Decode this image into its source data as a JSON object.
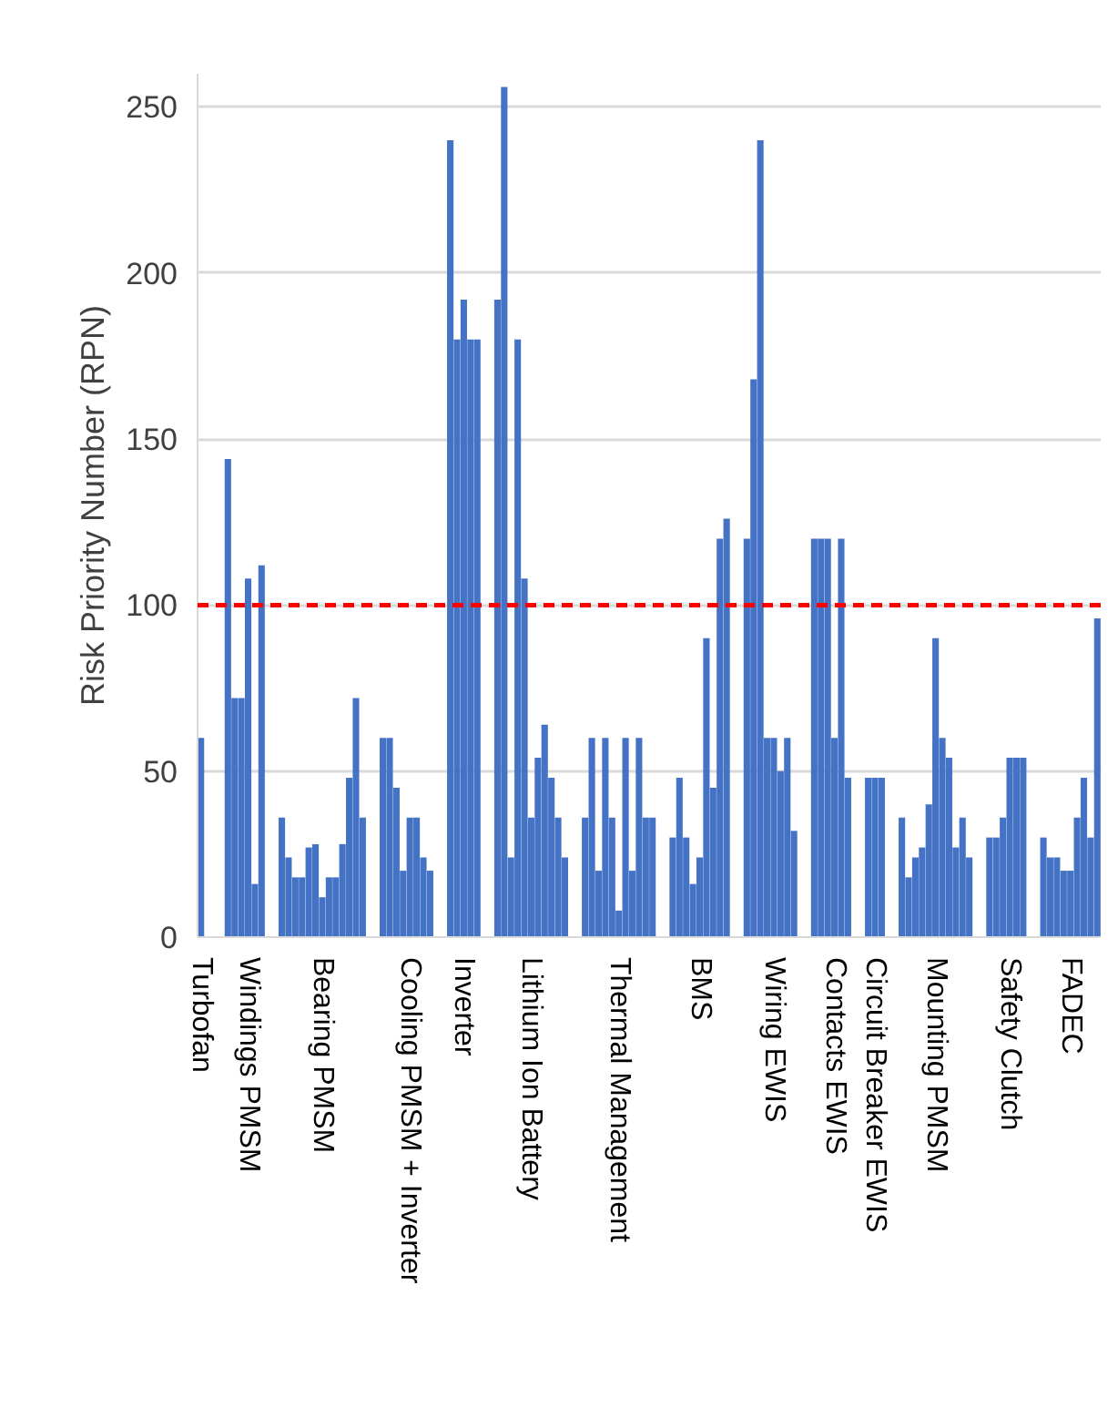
{
  "chart_data": {
    "type": "bar",
    "ylabel": "Risk Priority Number (RPN)",
    "categories": [
      "Turbofan",
      null,
      null,
      null,
      null,
      null,
      null,
      "Windings PMSM",
      null,
      null,
      null,
      null,
      null,
      null,
      null,
      null,
      null,
      null,
      "Bearing PMSM",
      null,
      null,
      null,
      null,
      null,
      null,
      null,
      null,
      null,
      null,
      null,
      null,
      "Cooling PMSM + Inverter",
      null,
      null,
      null,
      null,
      null,
      null,
      null,
      "Inverter",
      null,
      null,
      null,
      null,
      null,
      null,
      null,
      null,
      null,
      "Lithium Ion Battery",
      null,
      null,
      null,
      null,
      null,
      null,
      null,
      null,
      null,
      null,
      null,
      null,
      "Thermal Management",
      null,
      null,
      null,
      null,
      null,
      null,
      null,
      null,
      null,
      null,
      null,
      "BMS",
      null,
      null,
      null,
      null,
      null,
      null,
      null,
      null,
      null,
      null,
      "Wiring EWIS",
      null,
      null,
      null,
      null,
      null,
      null,
      null,
      null,
      "Contacts EWIS",
      null,
      null,
      null,
      null,
      null,
      "Circuit Breaker EWIS",
      null,
      null,
      null,
      null,
      null,
      null,
      null,
      null,
      "Mounting PMSM",
      null,
      null,
      null,
      null,
      null,
      null,
      null,
      null,
      null,
      null,
      "Safety Clutch",
      null,
      null,
      null,
      null,
      null,
      null,
      null,
      null,
      "FADEC",
      null,
      null,
      null,
      null
    ],
    "series": [
      {
        "color": "#4472c4",
        "values": [
          60,
          null,
          null,
          null,
          144,
          72,
          72,
          108,
          16,
          112,
          null,
          null,
          36,
          24,
          18,
          18,
          27,
          28,
          12,
          18,
          18,
          28,
          48,
          72,
          36,
          null,
          null,
          60,
          60,
          45,
          20,
          36,
          36,
          24,
          20,
          null,
          null,
          240,
          180,
          192,
          180,
          180,
          null,
          null,
          192,
          256,
          24,
          180,
          108,
          36,
          54,
          64,
          48,
          36,
          24,
          null,
          null,
          36,
          60,
          20,
          60,
          36,
          8,
          60,
          20,
          60,
          36,
          36,
          null,
          null,
          30,
          48,
          30,
          16,
          24,
          90,
          45,
          120,
          126,
          null,
          null,
          120,
          168,
          240,
          60,
          60,
          50,
          60,
          32,
          null,
          null,
          120,
          120,
          120,
          60,
          120,
          48,
          null,
          null,
          48,
          48,
          48,
          null,
          null,
          36,
          18,
          24,
          27,
          40,
          90,
          60,
          54,
          27,
          36,
          24,
          null,
          null,
          30,
          30,
          36,
          54,
          54,
          54,
          null,
          null,
          30,
          24,
          24,
          20,
          20,
          36,
          48,
          30,
          96
        ]
      }
    ],
    "ylim": [
      0,
      260
    ],
    "yticks": [
      0,
      50,
      100,
      150,
      200,
      250
    ],
    "grid": "y",
    "ref_lines": [
      {
        "axis": "y",
        "value": 100,
        "color": "#ff0000",
        "line_style": "dashed"
      }
    ]
  }
}
